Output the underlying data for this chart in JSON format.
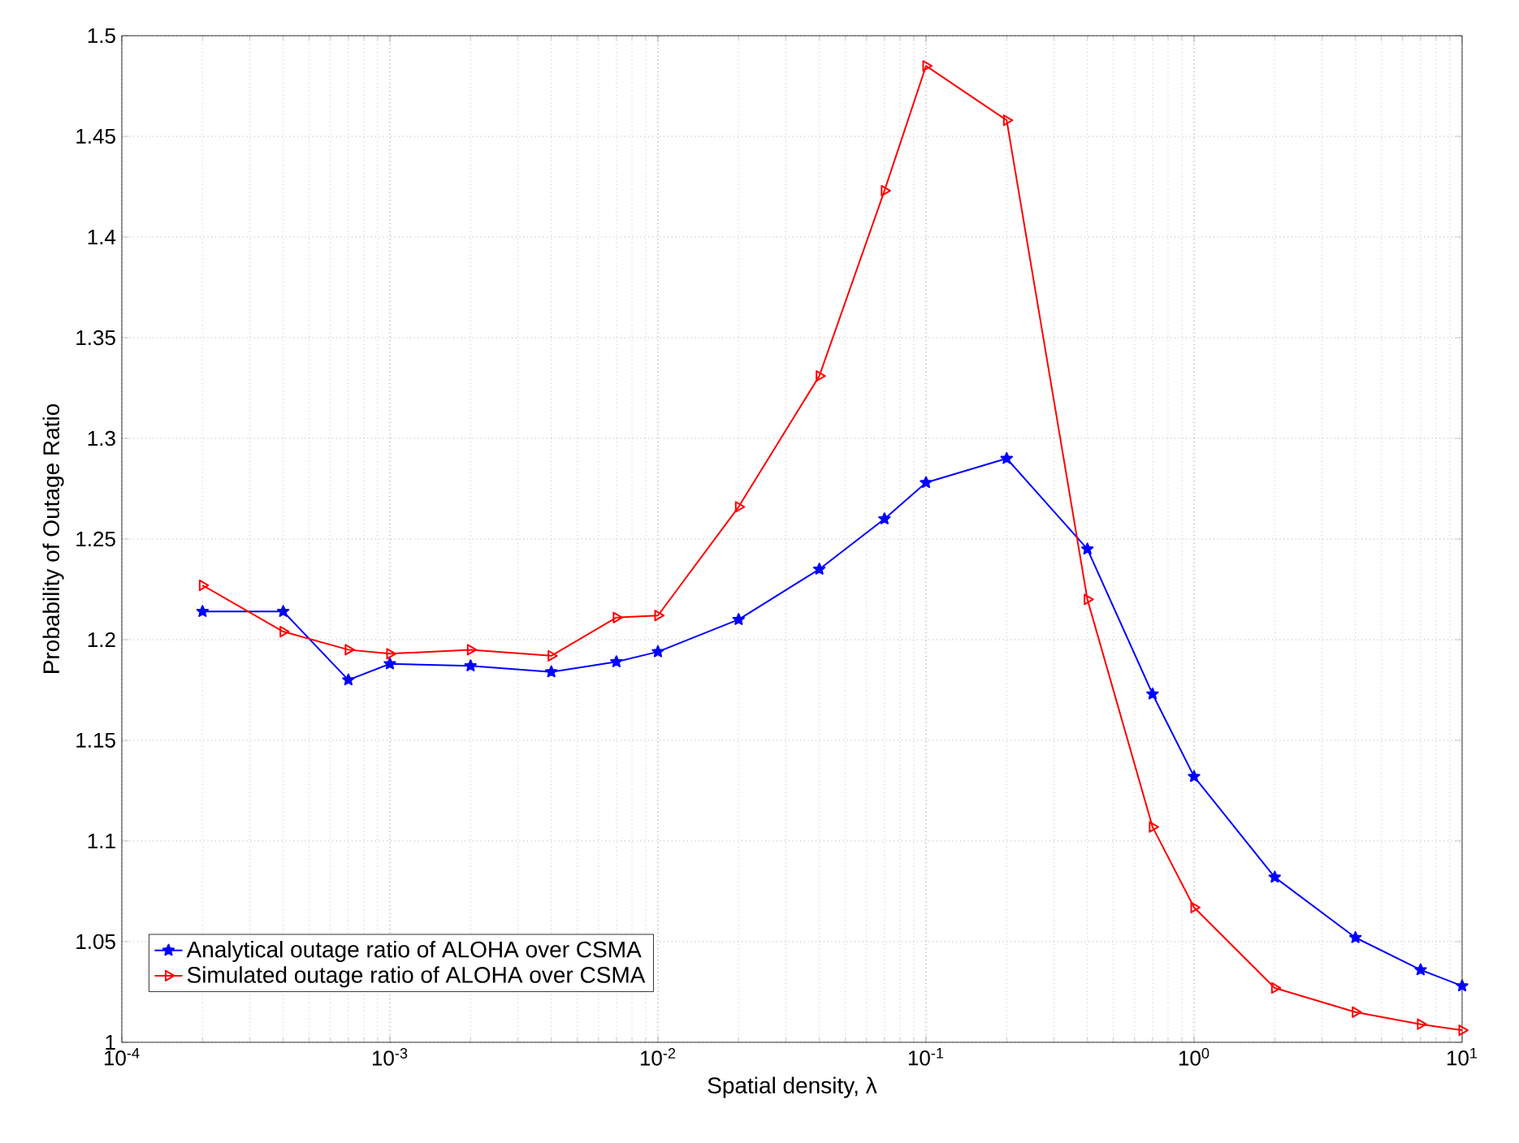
{
  "chart_data": {
    "type": "line",
    "xlabel": "Spatial density, λ",
    "ylabel": "Probability of Outage Ratio",
    "log": "x",
    "grid": true,
    "legend": "bottom left",
    "x": [
      0.0002,
      0.0004,
      0.0007,
      0.001,
      0.002,
      0.004,
      0.007,
      0.01,
      0.02,
      0.04,
      0.07,
      0.1,
      0.2,
      0.4,
      0.7,
      1,
      2,
      4,
      7,
      10
    ],
    "xlim": [
      0.0001,
      10
    ],
    "ylim": [
      1,
      1.5
    ],
    "xticks": [
      {
        "value": 0.0001,
        "label": "10$^{-4}$"
      },
      {
        "value": 0.001,
        "label": "10$^{-3}$"
      },
      {
        "value": 0.01,
        "label": "10$^{-2}$"
      },
      {
        "value": 0.1,
        "label": "10$^{-1}$"
      },
      {
        "value": 1,
        "label": "10$^{0}$"
      },
      {
        "value": 10,
        "label": "10$^{1}$"
      }
    ],
    "yticks": [
      1,
      1.05,
      1.1,
      1.15,
      1.2,
      1.25,
      1.3,
      1.35,
      1.4,
      1.45,
      1.5
    ],
    "series": [
      {
        "name": "Analytical outage ratio of ALOHA over CSMA",
        "color": "#0000ff",
        "marker": "star",
        "values": [
          1.214,
          1.214,
          1.18,
          1.188,
          1.187,
          1.184,
          1.189,
          1.194,
          1.21,
          1.235,
          1.26,
          1.278,
          1.29,
          1.245,
          1.173,
          1.132,
          1.082,
          1.052,
          1.036,
          1.028
        ]
      },
      {
        "name": "Simulated outage ratio of ALOHA over CSMA",
        "color": "#ff0000",
        "marker": "triangle",
        "values": [
          1.227,
          1.204,
          1.195,
          1.193,
          1.195,
          1.192,
          1.211,
          1.212,
          1.266,
          1.331,
          1.423,
          1.485,
          1.458,
          1.22,
          1.107,
          1.067,
          1.027,
          1.015,
          1.009,
          1.006
        ]
      }
    ]
  }
}
